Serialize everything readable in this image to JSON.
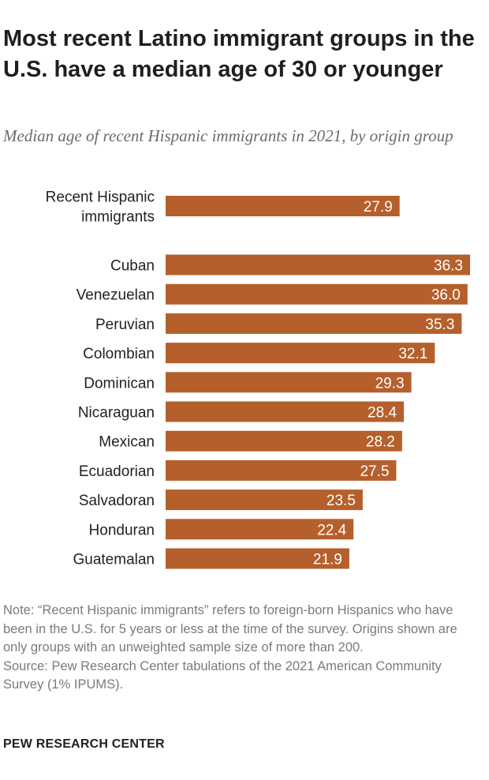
{
  "title": "Most recent Latino immigrant groups in the U.S. have a median age of 30 or younger",
  "subtitle": "Median age of recent Hispanic immigrants in 2021, by origin group",
  "note": "Note: “Recent Hispanic immigrants” refers to foreign-born Hispanics who have been in the U.S. for 5 years or less at the time of the survey. Origins shown are only groups with an unweighted sample size of more than 200.",
  "source": "Source: Pew Research Center tabulations of the 2021 American Community Survey (1% IPUMS).",
  "brand": "PEW RESEARCH CENTER",
  "colors": {
    "bar": "#b5602c",
    "text": "#222222",
    "value_text": "#ffffff"
  },
  "chart_data": {
    "type": "bar",
    "orientation": "horizontal",
    "title": "Most recent Latino immigrant groups in the U.S. have a median age of 30 or younger",
    "subtitle": "Median age of recent Hispanic immigrants in 2021, by origin group",
    "xlabel": "",
    "ylabel": "",
    "xlim": [
      0,
      36.3
    ],
    "grid": false,
    "legend": "none",
    "categories": [
      "Recent Hispanic immigrants",
      "Cuban",
      "Venezuelan",
      "Peruvian",
      "Colombian",
      "Dominican",
      "Nicaraguan",
      "Mexican",
      "Ecuadorian",
      "Salvadoran",
      "Honduran",
      "Guatemalan"
    ],
    "category_lines": [
      [
        "Recent Hispanic",
        "immigrants"
      ],
      [
        "Cuban"
      ],
      [
        "Venezuelan"
      ],
      [
        "Peruvian"
      ],
      [
        "Colombian"
      ],
      [
        "Dominican"
      ],
      [
        "Nicaraguan"
      ],
      [
        "Mexican"
      ],
      [
        "Ecuadorian"
      ],
      [
        "Salvadoran"
      ],
      [
        "Honduran"
      ],
      [
        "Guatemalan"
      ]
    ],
    "values": [
      27.9,
      36.3,
      36.0,
      35.3,
      32.1,
      29.3,
      28.4,
      28.2,
      27.5,
      23.5,
      22.4,
      21.9
    ],
    "value_labels": [
      "27.9",
      "36.3",
      "36.0",
      "35.3",
      "32.1",
      "29.3",
      "28.4",
      "28.2",
      "27.5",
      "23.5",
      "22.4",
      "21.9"
    ]
  }
}
